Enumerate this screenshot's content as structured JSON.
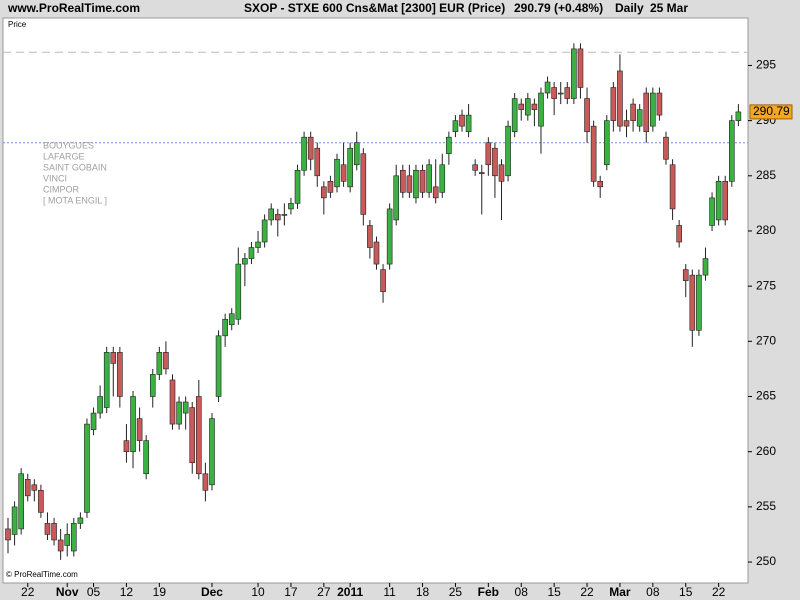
{
  "chart_data": {
    "type": "candlestick",
    "site": "www.ProRealTime.com",
    "title": "SXOP - STXE 600 Cns&Mat [2300] EUR (Price)",
    "change": "290.79 (+0.48%)",
    "period": "Daily",
    "date": "25 Mar",
    "panel_label": "Price",
    "copyright": "© ProRealTime.com",
    "notes": [
      "BOUYGUES",
      "LAFARGE",
      "SAINT GOBAIN",
      "VINCI",
      "CIMPOR",
      "[ MOTA ENGIL ]"
    ],
    "categories": [
      null,
      null,
      null,
      "22",
      null,
      null,
      null,
      null,
      null,
      "Nov",
      null,
      null,
      null,
      "05",
      null,
      null,
      null,
      null,
      "12",
      null,
      null,
      null,
      null,
      "19",
      null,
      null,
      null,
      null,
      null,
      null,
      null,
      "Dec",
      null,
      null,
      null,
      null,
      null,
      null,
      "10",
      null,
      null,
      null,
      null,
      "17",
      null,
      null,
      null,
      null,
      "27",
      null,
      null,
      null,
      "2011",
      null,
      null,
      null,
      null,
      null,
      "11",
      null,
      null,
      null,
      null,
      "18",
      null,
      null,
      null,
      null,
      "25",
      null,
      null,
      null,
      null,
      "Feb",
      null,
      null,
      null,
      null,
      "08",
      null,
      null,
      null,
      null,
      "15",
      null,
      null,
      null,
      null,
      "22",
      null,
      null,
      null,
      null,
      "Mar",
      null,
      null,
      null,
      null,
      "08",
      null,
      null,
      null,
      null,
      "15",
      null,
      null,
      null,
      null,
      "22",
      null,
      null,
      null
    ],
    "open": [
      253,
      252.5,
      253,
      257.5,
      257,
      256.5,
      253.5,
      253.5,
      252,
      251.5,
      251,
      253.5,
      254.5,
      262,
      263.5,
      264,
      269,
      269,
      261,
      260,
      263,
      258,
      265,
      267,
      269,
      266.5,
      262.5,
      263.5,
      264,
      265,
      258,
      257,
      265,
      270.5,
      271.5,
      272,
      277,
      277.5,
      278.5,
      279,
      281,
      281.5,
      281.5,
      282,
      282.5,
      285.5,
      288.5,
      287.5,
      284,
      284.5,
      284,
      286,
      284,
      286,
      287,
      280.5,
      279,
      276.5,
      277,
      281,
      285.5,
      285,
      283,
      285.5,
      283.5,
      284,
      283.5,
      287,
      289,
      290.5,
      289,
      286,
      285.3,
      288,
      287.5,
      286,
      285,
      289,
      291.5,
      290.5,
      291.5,
      289.5,
      292.5,
      293,
      292.5,
      293,
      292,
      296.5,
      292,
      289.5,
      284.5,
      286,
      293,
      294.5,
      290,
      291.5,
      289.5,
      292.5,
      289.5,
      292.5,
      288.5,
      286,
      280.5,
      276.5,
      276,
      271,
      276,
      280.5,
      281,
      284.5,
      284.5,
      290
    ],
    "high": [
      254,
      255.5,
      258.5,
      258,
      257.5,
      257,
      254.5,
      254,
      253,
      253.5,
      254,
      254.5,
      263,
      264,
      266,
      269.5,
      269.5,
      269.5,
      262.5,
      265.5,
      264,
      261.5,
      267.5,
      269.5,
      270,
      267,
      265,
      265,
      264.5,
      266.5,
      259,
      263.5,
      271,
      272.5,
      273,
      278.5,
      278,
      279,
      280,
      281.5,
      282.5,
      282,
      282.5,
      283,
      286,
      289,
      289,
      288,
      284.5,
      285,
      287,
      288,
      288,
      289,
      287.5,
      281,
      279.5,
      277,
      282.5,
      286,
      286,
      286,
      286,
      286,
      286.5,
      286.5,
      287,
      289,
      290.5,
      291,
      291.5,
      286.5,
      286,
      288.5,
      288,
      286.5,
      290,
      292.5,
      292,
      292.5,
      292,
      293,
      294,
      293.5,
      293.5,
      293.5,
      297,
      297,
      293,
      290,
      285,
      290.5,
      293.5,
      296,
      291,
      292,
      291.5,
      293,
      293,
      293,
      289,
      286.5,
      281,
      277,
      276.5,
      276.5,
      278.5,
      283.5,
      285,
      285,
      290.5,
      291.5
    ],
    "low": [
      250.8,
      251.5,
      252.5,
      255.5,
      255.5,
      254,
      252,
      251.5,
      250.2,
      250.5,
      250.5,
      253,
      254,
      261.5,
      263,
      263.5,
      265,
      264,
      259,
      258.5,
      260,
      257.5,
      264,
      266.5,
      267,
      262,
      262,
      262,
      258,
      257.5,
      255.5,
      256.5,
      264.5,
      269.5,
      271,
      271.5,
      275,
      277,
      278,
      278.5,
      280.5,
      279.5,
      280.5,
      281.5,
      282,
      285,
      285.5,
      284,
      281.5,
      283,
      283.5,
      284,
      283.5,
      285.5,
      280.5,
      277.5,
      276.5,
      273.5,
      276.5,
      280.5,
      283,
      283,
      282.5,
      283,
      283,
      282.5,
      283,
      286,
      288.5,
      289,
      288.5,
      285,
      281.5,
      285,
      283,
      281,
      284.5,
      288.5,
      290,
      290,
      289.5,
      287,
      292,
      290.5,
      291.5,
      291.5,
      291.5,
      292,
      288,
      284,
      283,
      285.5,
      289,
      289,
      288.5,
      289,
      289,
      288,
      289,
      290,
      286,
      281,
      278.5,
      274,
      269.5,
      270.5,
      275.5,
      280,
      280.5,
      280.5,
      284,
      289.5
    ],
    "close": [
      252,
      255,
      258,
      256,
      256.5,
      254.5,
      252.5,
      252,
      251,
      252.5,
      253.5,
      254,
      262.5,
      263.5,
      265,
      269,
      268,
      265,
      260,
      265,
      261,
      261,
      267,
      269,
      267.5,
      262.5,
      264.5,
      264.5,
      259,
      258,
      256.5,
      263,
      270.5,
      272,
      272.5,
      277,
      277.5,
      278.5,
      279,
      281,
      282,
      281,
      281.5,
      282.5,
      285.5,
      288.5,
      286.5,
      285,
      283,
      283.5,
      286.5,
      284.5,
      287.5,
      288,
      281.5,
      278.5,
      277,
      274.5,
      282,
      285,
      283.5,
      283.5,
      285.5,
      283.5,
      286,
      283,
      286,
      288.5,
      290,
      289.5,
      290.5,
      285.5,
      285.2,
      286,
      285,
      284.5,
      289.5,
      292,
      291,
      292,
      291,
      292.5,
      293.5,
      292,
      292.5,
      292,
      296.5,
      293,
      289,
      284.5,
      284,
      290,
      290,
      289.5,
      289.5,
      290,
      291,
      289,
      292.5,
      290.5,
      286.5,
      282,
      279,
      275.5,
      271,
      276,
      277.5,
      283,
      284.5,
      281,
      290,
      290.79
    ],
    "ylim": [
      248.1,
      299.3
    ],
    "yticks": [
      250,
      255,
      260,
      265,
      270,
      275,
      280,
      285,
      290,
      295
    ],
    "up_color": "#3cb043",
    "down_color": "#c85a5a",
    "reference_lines": [
      {
        "value": 296.2,
        "color": "#bbbbbb"
      },
      {
        "value": 288,
        "color": "#6f93dc"
      }
    ]
  }
}
